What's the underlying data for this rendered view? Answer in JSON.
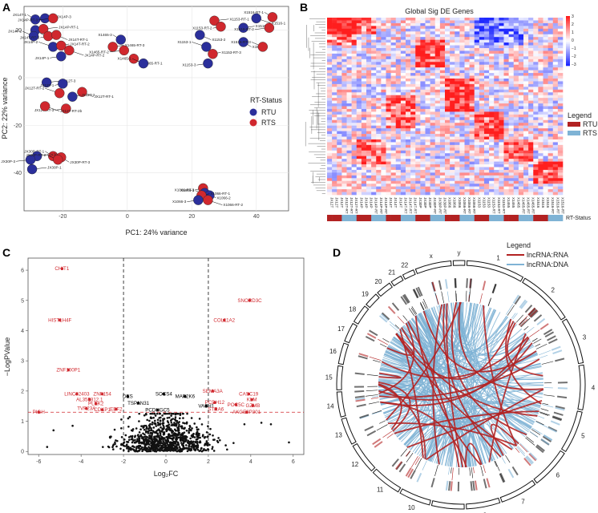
{
  "panel_labels": [
    "A",
    "B",
    "C",
    "D"
  ],
  "colors": {
    "rtu": "#2b2f9b",
    "rts": "#d0282e",
    "hm_high": "#e0201f",
    "hm_low": "#1a2bd6",
    "legend_rtu": "#b22222",
    "legend_rts": "#7fb3d5",
    "lnc_rna": "#b22222",
    "lnc_dna": "#7fb3d5"
  },
  "chart_data": [
    {
      "type": "scatter",
      "panel": "A",
      "xlabel": "PC1: 24% variance",
      "ylabel": "PC2: 22% variance",
      "xlim": [
        -32,
        50
      ],
      "ylim": [
        -56,
        30
      ],
      "xticks": [
        "-20",
        "0",
        "20",
        "40"
      ],
      "yticks": [
        "20",
        "0",
        "-20",
        "-40"
      ],
      "legend_title": "RT-Status",
      "legend": [
        "RTU",
        "RTS"
      ],
      "points": [
        {
          "label": "JX14T-1",
          "x": -28.5,
          "y": 24.5,
          "status": "RTU"
        },
        {
          "label": "JX14P-3",
          "x": -25.5,
          "y": 25,
          "status": "RTU"
        },
        {
          "label": "JX14P-RT-3",
          "x": -23,
          "y": 25,
          "status": "RTS"
        },
        {
          "label": "JX14T-3",
          "x": -28.5,
          "y": 20,
          "status": "RTU"
        },
        {
          "label": "JX14T-2",
          "x": -29,
          "y": 17.5,
          "status": "RTU"
        },
        {
          "label": "JX14P-RT-1",
          "x": -26,
          "y": 20.5,
          "status": "RTS"
        },
        {
          "label": "JX14T-RT-3",
          "x": -24.5,
          "y": 17.5,
          "status": "RTS"
        },
        {
          "label": "JX14T-RT-1",
          "x": -22,
          "y": 18,
          "status": "RTS"
        },
        {
          "label": "JX14P-2",
          "x": -23,
          "y": 13,
          "status": "RTU"
        },
        {
          "label": "JX14T-RT-2",
          "x": -20.5,
          "y": 13.5,
          "status": "RTS"
        },
        {
          "label": "JX14P-1",
          "x": -20.5,
          "y": 9,
          "status": "RTU"
        },
        {
          "label": "JX14P-RT-2",
          "x": -18,
          "y": 11.5,
          "status": "RTS"
        },
        {
          "label": "X1465-3",
          "x": -2,
          "y": 16,
          "status": "RTU"
        },
        {
          "label": "X1465-RT-3",
          "x": -4.5,
          "y": 13,
          "status": "RTS"
        },
        {
          "label": "X1465-RT-2",
          "x": -1,
          "y": 11.5,
          "status": "RTS"
        },
        {
          "label": "X1465-RT-1",
          "x": 2,
          "y": 8,
          "status": "RTS"
        },
        {
          "label": "X1465-1",
          "x": 5,
          "y": 6,
          "status": "RTU"
        },
        {
          "label": "X1153-RT-1",
          "x": 27,
          "y": 24,
          "status": "RTS"
        },
        {
          "label": "X1153-RT-2",
          "x": 29,
          "y": 21.5,
          "status": "RTS"
        },
        {
          "label": "X1153-2",
          "x": 22.5,
          "y": 18,
          "status": "RTU"
        },
        {
          "label": "X1153-1",
          "x": 24.5,
          "y": 13,
          "status": "RTU"
        },
        {
          "label": "X1153-RT-3",
          "x": 26.5,
          "y": 10,
          "status": "RTS"
        },
        {
          "label": "X1153-3",
          "x": 25,
          "y": 6,
          "status": "RTU"
        },
        {
          "label": "X1516-1",
          "x": 40,
          "y": 25,
          "status": "RTU"
        },
        {
          "label": "X1516-RT-1",
          "x": 45,
          "y": 25.5,
          "status": "RTS"
        },
        {
          "label": "X1516-2",
          "x": 36,
          "y": 21,
          "status": "RTU"
        },
        {
          "label": "X1516-RT-2",
          "x": 44,
          "y": 21,
          "status": "RTS"
        },
        {
          "label": "X1516-3",
          "x": 36,
          "y": 15,
          "status": "RTU"
        },
        {
          "label": "X1516-RT-3",
          "x": 42,
          "y": 13,
          "status": "RTS"
        },
        {
          "label": "JX12T-3",
          "x": -25,
          "y": -2,
          "status": "RTU"
        },
        {
          "label": "JX12T-1",
          "x": -20,
          "y": -2.5,
          "status": "RTU"
        },
        {
          "label": "JX12T-RT-1",
          "x": -14,
          "y": -6,
          "status": "RTS"
        },
        {
          "label": "JX12T-RT-2",
          "x": -21,
          "y": -6.5,
          "status": "RTS"
        },
        {
          "label": "JX12T-2",
          "x": -17,
          "y": -8,
          "status": "RTU"
        },
        {
          "label": "JX12T-RT-3",
          "x": -19,
          "y": -13,
          "status": "RTS"
        },
        {
          "label": "JX12T-RT-2b",
          "x": -25.5,
          "y": -12,
          "status": "RTS"
        },
        {
          "label": "JX30P-RT-1",
          "x": -23,
          "y": -33,
          "status": "RTS"
        },
        {
          "label": "JX30P-2",
          "x": -28,
          "y": -33,
          "status": "RTU"
        },
        {
          "label": "JX30P-3",
          "x": -30,
          "y": -34.5,
          "status": "RTU"
        },
        {
          "label": "JX30P-RT-3",
          "x": -20.5,
          "y": -33.5,
          "status": "RTS"
        },
        {
          "label": "JX30P-RT-2",
          "x": -21.5,
          "y": -34.5,
          "status": "RTS"
        },
        {
          "label": "JX30P-1",
          "x": -29.5,
          "y": -38.5,
          "status": "RTU"
        },
        {
          "label": "X1066-RT-3",
          "x": 23.5,
          "y": -46.5,
          "status": "RTS"
        },
        {
          "label": "X1066-2",
          "x": 24,
          "y": -48.5,
          "status": "RTU"
        },
        {
          "label": "X1066-1",
          "x": 25.5,
          "y": -49.5,
          "status": "RTU"
        },
        {
          "label": "X1066-RT-1",
          "x": 23,
          "y": -49.5,
          "status": "RTS"
        },
        {
          "label": "X1066-3",
          "x": 22,
          "y": -51.5,
          "status": "RTU"
        },
        {
          "label": "X1066-RT-2",
          "x": 25,
          "y": -51.5,
          "status": "RTS"
        }
      ]
    },
    {
      "type": "heatmap",
      "panel": "B",
      "title": "Global Sig DE Genes",
      "scale_ticks": [
        "3",
        "2",
        "1",
        "0",
        "−1",
        "−2",
        "−3"
      ],
      "legend_title": "Legend",
      "legend": [
        "RTU",
        "RTS"
      ],
      "annotation_label": "RT-Status",
      "columns": [
        "JX12T",
        "JX12T",
        "JX12T",
        "JX12T-RT",
        "JX12T-RT",
        "JX12T-RT",
        "JX14P",
        "JX14P",
        "JX14P",
        "JX14P-RT",
        "JX14P-RT",
        "JX14P-RT",
        "JX14T",
        "JX14T",
        "JX14T",
        "JX14T-RT",
        "JX14T-RT",
        "JX14T-RT",
        "JX30P",
        "JX30P",
        "JX30P",
        "JX30P-RT",
        "JX30P-RT",
        "JX30P-RT",
        "X1066",
        "X1066",
        "X1066",
        "X1066-RT",
        "X1066-RT",
        "X1066-RT",
        "X1153",
        "X1153",
        "X1153",
        "X1153-RT",
        "X1153-RT",
        "X1153-RT",
        "X1465",
        "X1465",
        "X1465",
        "X1465-RT",
        "X1465-RT",
        "X1465-RT",
        "X1516",
        "X1516",
        "X1516",
        "X1516-RT",
        "X1516-RT",
        "X1516-RT"
      ],
      "column_status": [
        "RTU",
        "RTU",
        "RTU",
        "RTS",
        "RTS",
        "RTS",
        "RTU",
        "RTU",
        "RTU",
        "RTS",
        "RTS",
        "RTS",
        "RTU",
        "RTU",
        "RTU",
        "RTS",
        "RTS",
        "RTS",
        "RTU",
        "RTU",
        "RTU",
        "RTS",
        "RTS",
        "RTS",
        "RTU",
        "RTU",
        "RTU",
        "RTS",
        "RTS",
        "RTS",
        "RTU",
        "RTU",
        "RTU",
        "RTS",
        "RTS",
        "RTS",
        "RTU",
        "RTU",
        "RTU",
        "RTS",
        "RTS",
        "RTS",
        "RTU",
        "RTU",
        "RTU",
        "RTS",
        "RTS",
        "RTS"
      ]
    },
    {
      "type": "scatter",
      "panel": "C",
      "xlabel": "Log₂FC",
      "ylabel": "−LogPValue",
      "xlim": [
        -6.5,
        6.5
      ],
      "ylim": [
        -0.1,
        6.4
      ],
      "xticks": [
        "-6",
        "-4",
        "-2",
        "0",
        "2",
        "4",
        "6"
      ],
      "yticks": [
        "0",
        "1",
        "2",
        "3",
        "4",
        "5",
        "6"
      ],
      "fc_threshold": [
        -2,
        2
      ],
      "p_threshold": 1.3,
      "labeled_points": [
        {
          "label": "CHIT1",
          "x": -4.9,
          "y": 6.05,
          "color": "#d0282e"
        },
        {
          "label": "HIST1H4F",
          "x": -5.0,
          "y": 4.35,
          "color": "#d0282e"
        },
        {
          "label": "SNORD3C",
          "x": 3.95,
          "y": 5.0,
          "color": "#d0282e"
        },
        {
          "label": "COL11A2",
          "x": 2.75,
          "y": 4.35,
          "color": "#d0282e"
        },
        {
          "label": "ZNF100P1",
          "x": -4.6,
          "y": 2.7,
          "color": "#d0282e"
        },
        {
          "label": "LINC02403",
          "x": -4.2,
          "y": 1.9,
          "color": "#d0282e"
        },
        {
          "label": "ZNF154",
          "x": -3.0,
          "y": 1.9,
          "color": "#d0282e"
        },
        {
          "label": "AL355312.1",
          "x": -3.6,
          "y": 1.72,
          "color": "#d0282e"
        },
        {
          "label": "PLEK2",
          "x": -3.3,
          "y": 1.58,
          "color": "#d0282e"
        },
        {
          "label": "TVP23A",
          "x": -3.75,
          "y": 1.42,
          "color": "#d0282e"
        },
        {
          "label": "CDKP1",
          "x": -3.0,
          "y": 1.38,
          "color": "#d0282e"
        },
        {
          "label": "EBF2",
          "x": -2.35,
          "y": 1.4,
          "color": "#d0282e"
        },
        {
          "label": "PIGH",
          "x": -6.0,
          "y": 1.3,
          "color": "#d0282e"
        },
        {
          "label": "DES",
          "x": -1.8,
          "y": 1.82,
          "color": "#000000"
        },
        {
          "label": "TSPAN31",
          "x": -1.3,
          "y": 1.6,
          "color": "#000000"
        },
        {
          "label": "SOCS4",
          "x": -0.1,
          "y": 1.9,
          "color": "#000000"
        },
        {
          "label": "PCDHGC5",
          "x": -0.4,
          "y": 1.37,
          "color": "#000000"
        },
        {
          "label": "MAP2K6",
          "x": 0.9,
          "y": 1.82,
          "color": "#000000"
        },
        {
          "label": "VASH1",
          "x": 1.9,
          "y": 1.5,
          "color": "#000000"
        },
        {
          "label": "SEMA3A",
          "x": 2.2,
          "y": 2.0,
          "color": "#d0282e"
        },
        {
          "label": "PCDH12",
          "x": 2.3,
          "y": 1.62,
          "color": "#d0282e"
        },
        {
          "label": "STRA6",
          "x": 2.35,
          "y": 1.4,
          "color": "#d0282e"
        },
        {
          "label": "CASC19",
          "x": 3.9,
          "y": 1.9,
          "color": "#d0282e"
        },
        {
          "label": "KLM",
          "x": 4.05,
          "y": 1.72,
          "color": "#d0282e"
        },
        {
          "label": "POC5C",
          "x": 3.3,
          "y": 1.55,
          "color": "#d0282e"
        },
        {
          "label": "GZMB",
          "x": 4.1,
          "y": 1.52,
          "color": "#d0282e"
        },
        {
          "label": "AKGE2P301",
          "x": 3.8,
          "y": 1.3,
          "color": "#d0282e"
        }
      ]
    },
    {
      "type": "circos",
      "panel": "D",
      "legend_title": "Legend",
      "legend": [
        "lncRNA:RNA",
        "lncRNA:DNA"
      ],
      "chromosomes": [
        "1",
        "2",
        "3",
        "4",
        "5",
        "6",
        "7",
        "8",
        "9",
        "10",
        "11",
        "12",
        "13",
        "14",
        "15",
        "16",
        "17",
        "18",
        "19",
        "20",
        "21",
        "22",
        "x",
        "y"
      ]
    }
  ]
}
